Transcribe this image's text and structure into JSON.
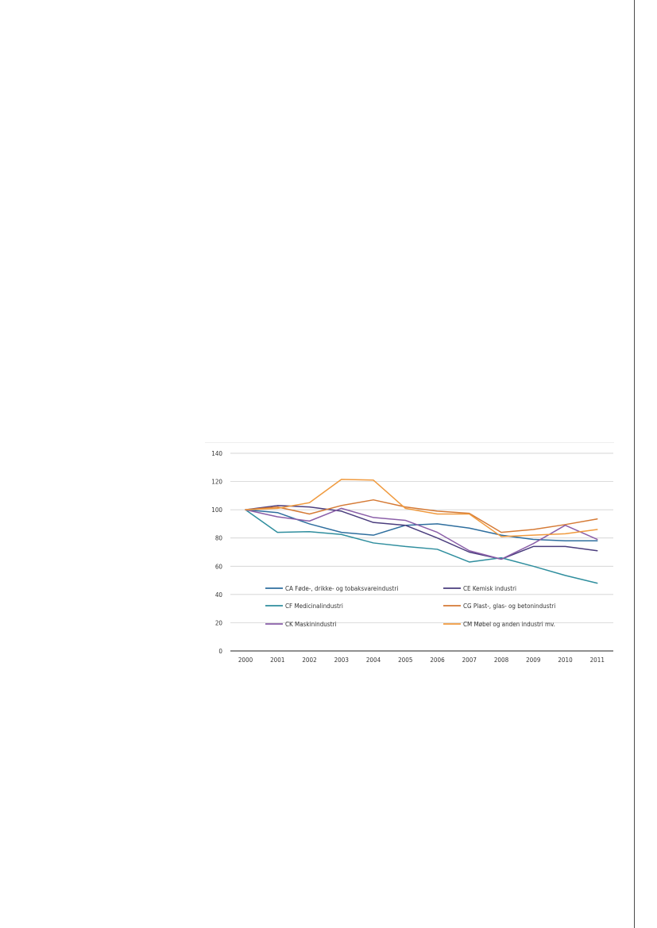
{
  "chart_data": {
    "type": "line",
    "title": "",
    "xlabel": "",
    "ylabel": "",
    "ylim": [
      0,
      140
    ],
    "yticks": [
      0,
      20,
      40,
      60,
      80,
      100,
      120,
      140
    ],
    "grid": true,
    "legend_position": "inside-bottom",
    "x": [
      "2000",
      "2001",
      "2002",
      "2003",
      "2004",
      "2005",
      "2006",
      "2007",
      "2008",
      "2009",
      "2010",
      "2011"
    ],
    "series": [
      {
        "name": "CA Føde-, drikke- og tobaksvareindustri",
        "color": "#2e6e9e",
        "values": [
          100,
          98,
          90,
          84,
          82,
          89,
          90,
          87,
          82,
          79,
          78,
          78
        ]
      },
      {
        "name": "CE Kemisk industri",
        "color": "#4a3d7d",
        "values": [
          100,
          103,
          102,
          99,
          91,
          89,
          80,
          70,
          65,
          74,
          74,
          71
        ]
      },
      {
        "name": "CF Medicinalindustri",
        "color": "#2f8e9e",
        "values": [
          100,
          84,
          84.5,
          82.5,
          76.5,
          74,
          72,
          63,
          66,
          60,
          53.5,
          48
        ]
      },
      {
        "name": "CG Plast-, glas- og betonindustri",
        "color": "#d57a35",
        "values": [
          100,
          102,
          97,
          103,
          107,
          102,
          99,
          97.5,
          84,
          86,
          89.5,
          93.5
        ]
      },
      {
        "name": "CK Maskinindustri",
        "color": "#8a5ea8",
        "values": [
          100,
          95,
          92,
          101,
          94.5,
          92.5,
          84,
          71,
          65,
          76,
          89,
          79
        ]
      },
      {
        "name": "CM Møbel og anden industri mv.",
        "color": "#f09a3e",
        "values": [
          100,
          101,
          105,
          121.5,
          121,
          101,
          97,
          97,
          81,
          82,
          83,
          86
        ]
      }
    ]
  }
}
